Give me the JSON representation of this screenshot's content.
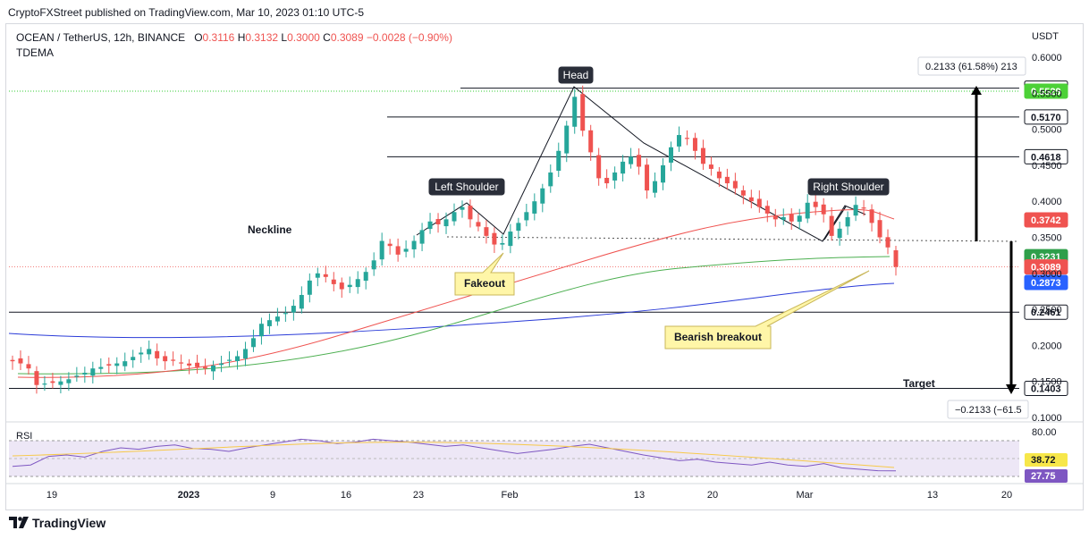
{
  "header": {
    "publisher": "CryptoFXStreet published on TradingView.com, Mar 10, 2023 01:10 UTC-5"
  },
  "legend": {
    "symbol": "OCEAN / TetherUS, 12h, BINANCE",
    "open_label": "O",
    "open": "0.3116",
    "high_label": "H",
    "high": "0.3132",
    "low_label": "L",
    "low": "0.3000",
    "close_label": "C",
    "close": "0.3089",
    "change": "−0.0028 (−0.90%)",
    "indicator": "TDEMA"
  },
  "footer": {
    "brand": "TradingView",
    "logo_icon": "tradingview-logo-icon"
  },
  "colors": {
    "up": "#26a69a",
    "down": "#ef5350",
    "ema_red": "#ef5350",
    "ema_green": "#4caf50",
    "ema_blue": "#2a3bd8",
    "rsi": "#7e57c2",
    "rsi_ma": "#f7c948",
    "neon": "#33cc33"
  },
  "chart_data": {
    "type": "candlestick",
    "title": "OCEAN / TetherUS, 12h, BINANCE",
    "yaxis_unit": "USDT",
    "ylim": [
      0.1,
      0.6
    ],
    "y_ticks": [
      "0.6000",
      "0.5500",
      "0.5000",
      "0.4500",
      "0.4000",
      "0.3500",
      "0.3000",
      "0.2500",
      "0.2000",
      "0.1500",
      "0.1000"
    ],
    "x_ticks": [
      "19",
      "2023",
      "9",
      "16",
      "23",
      "Feb",
      "13",
      "20",
      "Mar",
      "13",
      "20"
    ],
    "price_levels": [
      {
        "value": "0.5571",
        "style": "arrow-top"
      },
      {
        "value": "0.5529",
        "style": "green-label"
      },
      {
        "value": "0.5170"
      },
      {
        "value": "0.4618"
      },
      {
        "value": "0.3742",
        "style": "red-label"
      },
      {
        "value": "0.3231",
        "style": "green-label"
      },
      {
        "value": "0.3089",
        "style": "red-label"
      },
      {
        "value": "0.2873",
        "style": "blue-label"
      },
      {
        "value": "0.2461"
      },
      {
        "value": "0.1403"
      }
    ],
    "measure_up": "0.2133 (61.58%) 213",
    "measure_down": "−0.2133 (−61.5",
    "annotations": {
      "head": "Head",
      "left_shoulder": "Left Shoulder",
      "right_shoulder": "Right Shoulder",
      "neckline": "Neckline",
      "fakeout": "Fakeout",
      "bearish_breakout": "Bearish breakout",
      "target": "Target"
    },
    "series": [
      {
        "name": "",
        "values": [
          0.178,
          0.175,
          0.168,
          0.145,
          0.147,
          0.148,
          0.15,
          0.153,
          0.158,
          0.162,
          0.168,
          0.17,
          0.172,
          0.175,
          0.178,
          0.184,
          0.19,
          0.195,
          0.182,
          0.178,
          0.18,
          0.176,
          0.172,
          0.17,
          0.168,
          0.172,
          0.175,
          0.18,
          0.185,
          0.195,
          0.21,
          0.23,
          0.235,
          0.24,
          0.245,
          0.255,
          0.27,
          0.29,
          0.3,
          0.295,
          0.285,
          0.278,
          0.284,
          0.292,
          0.302,
          0.318,
          0.345,
          0.338,
          0.326,
          0.334,
          0.345,
          0.36,
          0.372,
          0.368,
          0.375,
          0.385,
          0.392,
          0.375,
          0.365,
          0.352,
          0.34,
          0.342,
          0.358,
          0.37,
          0.385,
          0.4,
          0.418,
          0.44,
          0.47,
          0.505,
          0.545,
          0.498,
          0.468,
          0.432,
          0.425,
          0.44,
          0.455,
          0.462,
          0.448,
          0.415,
          0.428,
          0.45,
          0.475,
          0.492,
          0.488,
          0.47,
          0.452,
          0.445,
          0.432,
          0.425,
          0.418,
          0.408,
          0.4,
          0.392,
          0.383,
          0.375,
          0.378,
          0.372,
          0.38,
          0.398,
          0.392,
          0.382,
          0.352,
          0.362,
          0.378,
          0.395,
          0.39,
          0.37,
          0.35,
          0.336,
          0.309
        ]
      },
      {
        "name": "",
        "note": "rsi",
        "values": [
          34,
          36,
          48,
          50,
          47,
          55,
          60,
          58,
          62,
          64,
          59,
          58,
          55,
          60,
          64,
          68,
          72,
          70,
          66,
          68,
          72,
          70,
          68,
          65,
          62,
          64,
          60,
          56,
          52,
          55,
          58,
          62,
          65,
          60,
          55,
          50,
          46,
          42,
          44,
          40,
          38,
          36,
          40,
          36,
          34,
          38,
          32,
          30,
          28,
          27.75
        ]
      }
    ],
    "indicators": {
      "rsi_label": "RSI",
      "rsi_ticks": [
        "80.00"
      ],
      "rsi_values": [
        "38.72",
        "27.75"
      ]
    }
  }
}
